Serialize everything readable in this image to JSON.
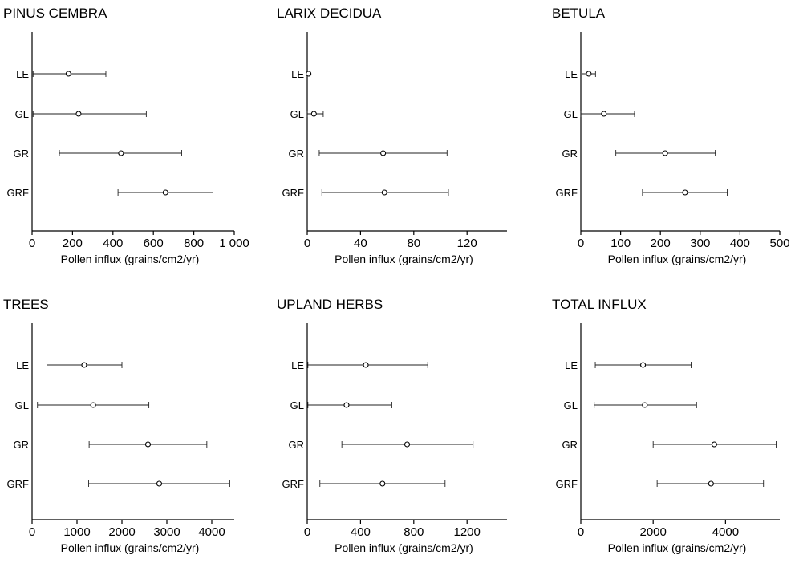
{
  "chart_data": [
    {
      "type": "scatter",
      "title": "PINUS CEMBRA",
      "xlabel": "Pollen influx (grains/cm2/yr)",
      "ylabel": "",
      "categories": [
        "LE",
        "GL",
        "GR",
        "GRF"
      ],
      "xlim": [
        0,
        1000
      ],
      "xticks": [
        0,
        200,
        400,
        600,
        800,
        1000
      ],
      "xticklabels": [
        "0",
        "200",
        "400",
        "600",
        "800",
        "1 000"
      ],
      "points": [
        {
          "category": "LE",
          "value": 180,
          "low": 5,
          "high": 365
        },
        {
          "category": "GL",
          "value": 230,
          "low": 5,
          "high": 565
        },
        {
          "category": "GR",
          "value": 440,
          "low": 135,
          "high": 740
        },
        {
          "category": "GRF",
          "value": 660,
          "low": 425,
          "high": 895
        }
      ]
    },
    {
      "type": "scatter",
      "title": "LARIX DECIDUA",
      "xlabel": "Pollen influx (grains/cm2/yr)",
      "ylabel": "",
      "categories": [
        "LE",
        "GL",
        "GR",
        "GRF"
      ],
      "xlim": [
        0,
        150
      ],
      "xticks": [
        0,
        40,
        80,
        120
      ],
      "xticklabels": [
        "0",
        "40",
        "80",
        "120"
      ],
      "points": [
        {
          "category": "LE",
          "value": 1,
          "low": 0,
          "high": 2
        },
        {
          "category": "GL",
          "value": 5,
          "low": 0,
          "high": 12
        },
        {
          "category": "GR",
          "value": 57,
          "low": 9,
          "high": 105
        },
        {
          "category": "GRF",
          "value": 58,
          "low": 11,
          "high": 106
        }
      ]
    },
    {
      "type": "scatter",
      "title": "BETULA",
      "xlabel": "Pollen influx (grains/cm2/yr)",
      "ylabel": "",
      "categories": [
        "LE",
        "GL",
        "GR",
        "GRF"
      ],
      "xlim": [
        0,
        500
      ],
      "xticks": [
        0,
        100,
        200,
        300,
        400,
        500
      ],
      "xticklabels": [
        "0",
        "100",
        "200",
        "300",
        "400",
        "500"
      ],
      "points": [
        {
          "category": "LE",
          "value": 20,
          "low": 3,
          "high": 37
        },
        {
          "category": "GL",
          "value": 58,
          "low": 0,
          "high": 135
        },
        {
          "category": "GR",
          "value": 212,
          "low": 88,
          "high": 338
        },
        {
          "category": "GRF",
          "value": 262,
          "low": 155,
          "high": 368
        }
      ]
    },
    {
      "type": "scatter",
      "title": "TREES",
      "xlabel": "Pollen influx (grains/cm2/yr)",
      "ylabel": "",
      "categories": [
        "LE",
        "GL",
        "GR",
        "GRF"
      ],
      "xlim": [
        0,
        4500
      ],
      "xticks": [
        0,
        1000,
        2000,
        3000,
        4000
      ],
      "xticklabels": [
        "0",
        "1000",
        "2000",
        "3000",
        "4000"
      ],
      "points": [
        {
          "category": "LE",
          "value": 1160,
          "low": 330,
          "high": 2000
        },
        {
          "category": "GL",
          "value": 1360,
          "low": 120,
          "high": 2600
        },
        {
          "category": "GR",
          "value": 2580,
          "low": 1270,
          "high": 3890
        },
        {
          "category": "GRF",
          "value": 2830,
          "low": 1260,
          "high": 4400
        }
      ]
    },
    {
      "type": "scatter",
      "title": "UPLAND HERBS",
      "xlabel": "Pollen influx (grains/cm2/yr)",
      "ylabel": "",
      "categories": [
        "LE",
        "GL",
        "GR",
        "GRF"
      ],
      "xlim": [
        0,
        1500
      ],
      "xticks": [
        0,
        400,
        800,
        1200
      ],
      "xticklabels": [
        "0",
        "400",
        "800",
        "1200"
      ],
      "points": [
        {
          "category": "LE",
          "value": 440,
          "low": 5,
          "high": 905
        },
        {
          "category": "GL",
          "value": 295,
          "low": 5,
          "high": 635
        },
        {
          "category": "GR",
          "value": 750,
          "low": 260,
          "high": 1245
        },
        {
          "category": "GRF",
          "value": 565,
          "low": 95,
          "high": 1035
        }
      ]
    },
    {
      "type": "scatter",
      "title": "TOTAL INFLUX",
      "xlabel": "Pollen influx (grains/cm2/yr)",
      "ylabel": "",
      "categories": [
        "LE",
        "GL",
        "GR",
        "GRF"
      ],
      "xlim": [
        0,
        5500
      ],
      "xticks": [
        0,
        2000,
        4000
      ],
      "xticklabels": [
        "0",
        "2000",
        "4000"
      ],
      "points": [
        {
          "category": "LE",
          "value": 1720,
          "low": 400,
          "high": 3050
        },
        {
          "category": "GL",
          "value": 1770,
          "low": 370,
          "high": 3200
        },
        {
          "category": "GR",
          "value": 3690,
          "low": 2000,
          "high": 5400
        },
        {
          "category": "GRF",
          "value": 3600,
          "low": 2110,
          "high": 5050
        }
      ]
    }
  ]
}
